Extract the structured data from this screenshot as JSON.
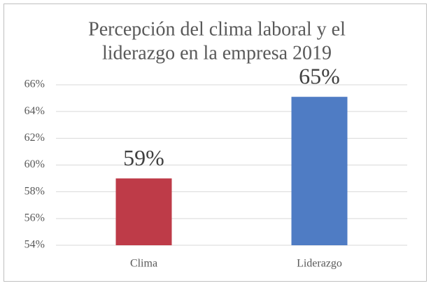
{
  "chart_data": {
    "type": "bar",
    "title": [
      "Percepción del clima laboral y el",
      "liderazgo en la empresa 2019"
    ],
    "categories": [
      "Clima",
      "Liderazgo"
    ],
    "values": [
      59,
      65.1
    ],
    "value_labels": [
      "59%",
      "65%"
    ],
    "colors": [
      "#be3b48",
      "#4f7cc4"
    ],
    "ylim": [
      54,
      66
    ],
    "yticks": [
      {
        "value": 54,
        "label": "54%"
      },
      {
        "value": 56,
        "label": "56%"
      },
      {
        "value": 58,
        "label": "58%"
      },
      {
        "value": 60,
        "label": "60%"
      },
      {
        "value": 62,
        "label": "62%"
      },
      {
        "value": 64,
        "label": "64%"
      },
      {
        "value": 66,
        "label": "66%"
      }
    ],
    "grid": true
  }
}
